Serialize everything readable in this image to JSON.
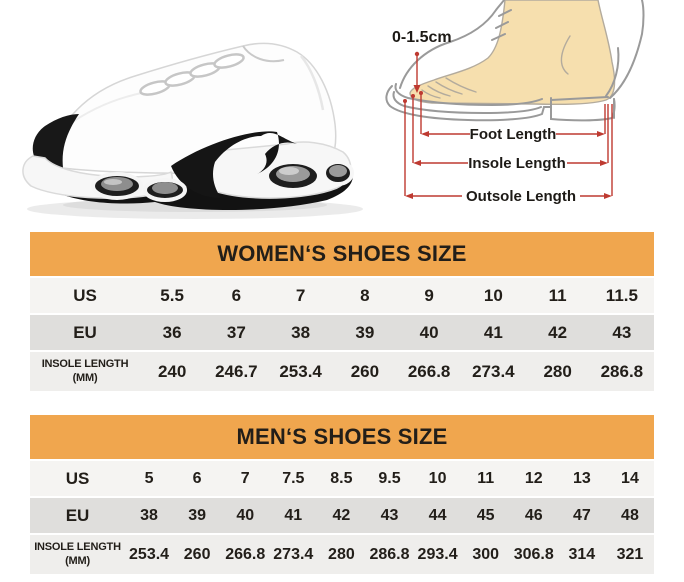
{
  "colors": {
    "header_bg": "#F0A64E",
    "text_dark": "#221E19",
    "row_us_bg": "#F5F4F2",
    "row_eu_bg": "#DFDEDC",
    "row_insole_bg": "#EFEEEC",
    "measure_red": "#BE3A31",
    "foot_fill": "#F6DFAE",
    "outline_gray": "#9A9A9A"
  },
  "images": {
    "sneaker": "white-running-sneaker-side-view"
  },
  "diagram": {
    "toe_gap_label": "0-1.5cm",
    "labels": [
      "Foot Length",
      "Insole Length",
      "Outsole Length"
    ]
  },
  "chart_data": [
    {
      "type": "table",
      "name": "womens",
      "title": "WOMEN‘S SHOES SIZE",
      "rows": [
        {
          "kind": "us",
          "label": "US",
          "values": [
            "5.5",
            "6",
            "7",
            "8",
            "9",
            "10",
            "11",
            "11.5"
          ]
        },
        {
          "kind": "eu",
          "label": "EU",
          "values": [
            "36",
            "37",
            "38",
            "39",
            "40",
            "41",
            "42",
            "43"
          ]
        },
        {
          "kind": "insole",
          "label": "INSOLE LENGTH",
          "sublabel": "(MM)",
          "values": [
            "240",
            "246.7",
            "253.4",
            "260",
            "266.8",
            "273.4",
            "280",
            "286.8"
          ]
        }
      ]
    },
    {
      "type": "table",
      "name": "mens",
      "title": "MEN‘S SHOES SIZE",
      "rows": [
        {
          "kind": "us",
          "label": "US",
          "values": [
            "5",
            "6",
            "7",
            "7.5",
            "8.5",
            "9.5",
            "10",
            "11",
            "12",
            "13",
            "14"
          ]
        },
        {
          "kind": "eu",
          "label": "EU",
          "values": [
            "38",
            "39",
            "40",
            "41",
            "42",
            "43",
            "44",
            "45",
            "46",
            "47",
            "48"
          ]
        },
        {
          "kind": "insole",
          "label": "INSOLE LENGTH",
          "sublabel": "(MM)",
          "values": [
            "253.4",
            "260",
            "266.8",
            "273.4",
            "280",
            "286.8",
            "293.4",
            "300",
            "306.8",
            "314",
            "321"
          ]
        }
      ]
    }
  ]
}
